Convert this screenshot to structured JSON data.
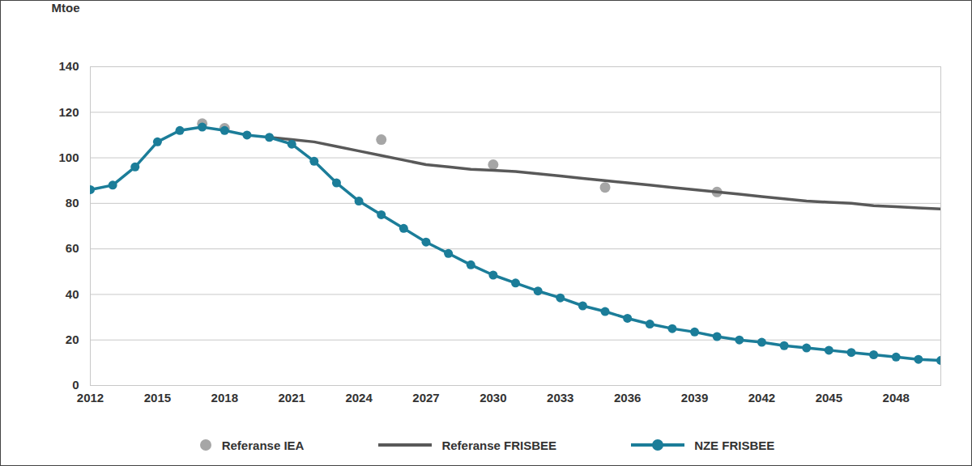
{
  "chart_data": {
    "type": "line",
    "y_label": "Mtoe",
    "x": [
      2012,
      2013,
      2014,
      2015,
      2016,
      2017,
      2018,
      2019,
      2020,
      2021,
      2022,
      2023,
      2024,
      2025,
      2026,
      2027,
      2028,
      2029,
      2030,
      2031,
      2032,
      2033,
      2034,
      2035,
      2036,
      2037,
      2038,
      2039,
      2040,
      2041,
      2042,
      2043,
      2044,
      2045,
      2046,
      2047,
      2048,
      2049,
      2050
    ],
    "xlim": [
      2012,
      2050
    ],
    "xticks": [
      2012,
      2015,
      2018,
      2021,
      2024,
      2027,
      2030,
      2033,
      2036,
      2039,
      2042,
      2045,
      2048
    ],
    "ylim": [
      0,
      140
    ],
    "yticks": [
      0,
      20,
      40,
      60,
      80,
      100,
      120,
      140
    ],
    "grid": true,
    "legend": "bottom",
    "series": [
      {
        "name": "Referanse IEA",
        "type": "scatter",
        "marker": "circle",
        "color": "#a6a6a6",
        "values": [
          null,
          null,
          null,
          null,
          null,
          115,
          113,
          null,
          null,
          null,
          null,
          null,
          null,
          108,
          null,
          null,
          null,
          null,
          97,
          null,
          null,
          null,
          null,
          87,
          null,
          null,
          null,
          null,
          85,
          null,
          null,
          null,
          null,
          null,
          null,
          null,
          null,
          null,
          null
        ]
      },
      {
        "name": "Referanse FRISBEE",
        "type": "line",
        "color": "#595959",
        "values": [
          null,
          null,
          null,
          null,
          null,
          null,
          null,
          null,
          109,
          108,
          107,
          105,
          103,
          101,
          99,
          97,
          96,
          95,
          94.5,
          94,
          93,
          92,
          91,
          90,
          89,
          88,
          87,
          86,
          85,
          84,
          83,
          82,
          81,
          80.5,
          80,
          79,
          78.5,
          78,
          77.5
        ]
      },
      {
        "name": "NZE FRISBEE",
        "type": "line",
        "marker": "circle",
        "color": "#1b7d99",
        "values": [
          86,
          88,
          96,
          107,
          112,
          113.5,
          112,
          110,
          109,
          106,
          98.5,
          89,
          81,
          75,
          69,
          63,
          58,
          53,
          48.5,
          45,
          41.5,
          38.5,
          35,
          32.5,
          29.5,
          27,
          25,
          23.5,
          21.5,
          20,
          19,
          17.5,
          16.5,
          15.5,
          14.5,
          13.5,
          12.5,
          11.5,
          11
        ]
      }
    ]
  }
}
